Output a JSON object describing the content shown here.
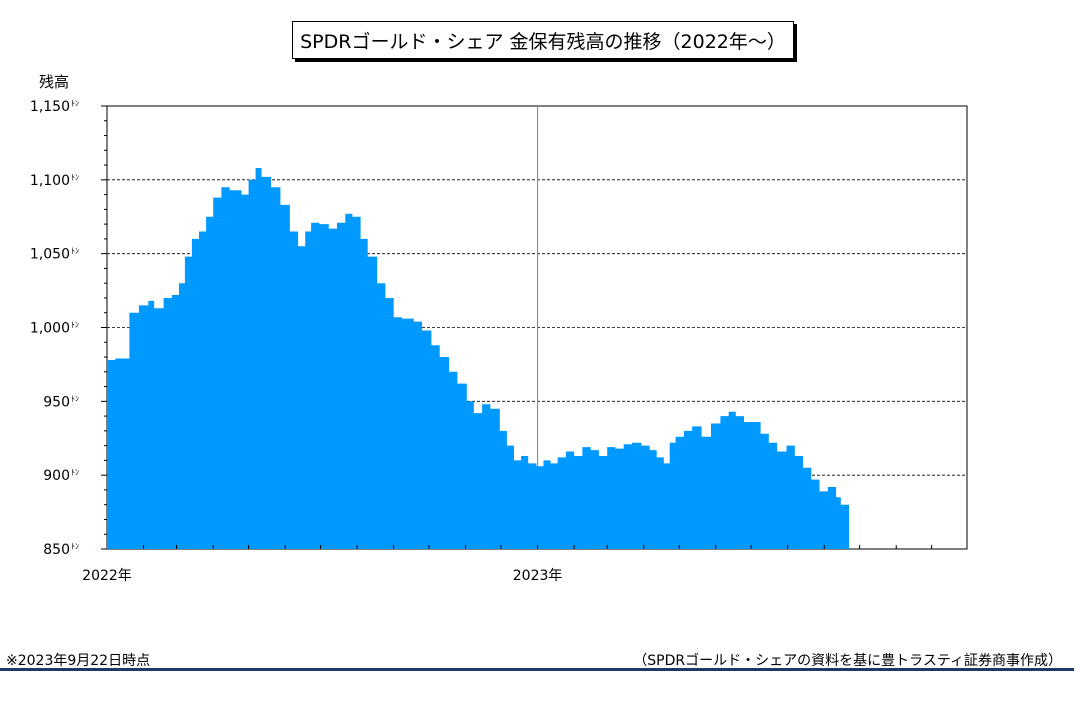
{
  "chart_data": {
    "type": "area",
    "title": "SPDRゴールド・シェア 金保有残高の推移（2022年～）",
    "ylabel": "残高",
    "y_unit": "ﾄﾝ",
    "ylim": [
      850,
      1150
    ],
    "y_ticks": [
      850,
      900,
      950,
      1000,
      1050,
      1100,
      1150
    ],
    "y_tick_labels": [
      "850",
      "900",
      "950",
      "1,000",
      "1,050",
      "1,100",
      "1,150"
    ],
    "x_range": [
      "2022-01-01",
      "2023-12-31"
    ],
    "x_tick_labels": [
      {
        "date": "2022-01-01",
        "label": "2022年"
      },
      {
        "date": "2023-01-01",
        "label": "2023年"
      }
    ],
    "grid": true,
    "fill_color": "#0099ff",
    "series": [
      {
        "points": [
          [
            "2022-01-01",
            982
          ],
          [
            "2022-01-08",
            978
          ],
          [
            "2022-01-20",
            979
          ],
          [
            "2022-01-28",
            1010
          ],
          [
            "2022-02-05",
            1015
          ],
          [
            "2022-02-10",
            1018
          ],
          [
            "2022-02-18",
            1013
          ],
          [
            "2022-02-25",
            1020
          ],
          [
            "2022-03-03",
            1022
          ],
          [
            "2022-03-08",
            1030
          ],
          [
            "2022-03-14",
            1048
          ],
          [
            "2022-03-20",
            1060
          ],
          [
            "2022-03-26",
            1065
          ],
          [
            "2022-04-01",
            1075
          ],
          [
            "2022-04-08",
            1088
          ],
          [
            "2022-04-15",
            1095
          ],
          [
            "2022-04-25",
            1093
          ],
          [
            "2022-05-01",
            1090
          ],
          [
            "2022-05-07",
            1100
          ],
          [
            "2022-05-12",
            1108
          ],
          [
            "2022-05-20",
            1102
          ],
          [
            "2022-05-28",
            1095
          ],
          [
            "2022-06-05",
            1083
          ],
          [
            "2022-06-12",
            1065
          ],
          [
            "2022-06-18",
            1055
          ],
          [
            "2022-06-23",
            1065
          ],
          [
            "2022-06-30",
            1071
          ],
          [
            "2022-07-08",
            1070
          ],
          [
            "2022-07-15",
            1067
          ],
          [
            "2022-07-22",
            1071
          ],
          [
            "2022-07-28",
            1077
          ],
          [
            "2022-08-04",
            1075
          ],
          [
            "2022-08-10",
            1060
          ],
          [
            "2022-08-18",
            1048
          ],
          [
            "2022-08-25",
            1030
          ],
          [
            "2022-09-01",
            1020
          ],
          [
            "2022-09-08",
            1007
          ],
          [
            "2022-09-18",
            1006
          ],
          [
            "2022-09-25",
            1004
          ],
          [
            "2022-10-03",
            998
          ],
          [
            "2022-10-10",
            988
          ],
          [
            "2022-10-18",
            980
          ],
          [
            "2022-10-25",
            970
          ],
          [
            "2022-11-02",
            962
          ],
          [
            "2022-11-08",
            950
          ],
          [
            "2022-11-15",
            942
          ],
          [
            "2022-11-22",
            948
          ],
          [
            "2022-11-30",
            945
          ],
          [
            "2022-12-06",
            930
          ],
          [
            "2022-12-12",
            920
          ],
          [
            "2022-12-18",
            910
          ],
          [
            "2022-12-24",
            913
          ],
          [
            "2022-12-31",
            908
          ],
          [
            "2023-01-06",
            906
          ],
          [
            "2023-01-12",
            910
          ],
          [
            "2023-01-18",
            908
          ],
          [
            "2023-01-25",
            912
          ],
          [
            "2023-02-01",
            916
          ],
          [
            "2023-02-08",
            913
          ],
          [
            "2023-02-15",
            919
          ],
          [
            "2023-02-22",
            917
          ],
          [
            "2023-03-01",
            913
          ],
          [
            "2023-03-08",
            919
          ],
          [
            "2023-03-15",
            918
          ],
          [
            "2023-03-22",
            921
          ],
          [
            "2023-03-30",
            922
          ],
          [
            "2023-04-06",
            920
          ],
          [
            "2023-04-12",
            917
          ],
          [
            "2023-04-18",
            912
          ],
          [
            "2023-04-23",
            908
          ],
          [
            "2023-04-28",
            922
          ],
          [
            "2023-05-05",
            926
          ],
          [
            "2023-05-12",
            930
          ],
          [
            "2023-05-20",
            933
          ],
          [
            "2023-05-28",
            926
          ],
          [
            "2023-06-05",
            935
          ],
          [
            "2023-06-12",
            940
          ],
          [
            "2023-06-18",
            943
          ],
          [
            "2023-06-25",
            940
          ],
          [
            "2023-07-02",
            936
          ],
          [
            "2023-07-09",
            936
          ],
          [
            "2023-07-16",
            928
          ],
          [
            "2023-07-23",
            922
          ],
          [
            "2023-07-31",
            916
          ],
          [
            "2023-08-07",
            920
          ],
          [
            "2023-08-14",
            913
          ],
          [
            "2023-08-21",
            905
          ],
          [
            "2023-08-28",
            897
          ],
          [
            "2023-09-04",
            889
          ],
          [
            "2023-09-11",
            892
          ],
          [
            "2023-09-15",
            885
          ],
          [
            "2023-09-22",
            880
          ]
        ]
      }
    ]
  },
  "footer": {
    "note": "※2023年9月22日時点",
    "source": "（SPDRゴールド・シェアの資料を基に豊トラスティ証券商事作成）"
  }
}
